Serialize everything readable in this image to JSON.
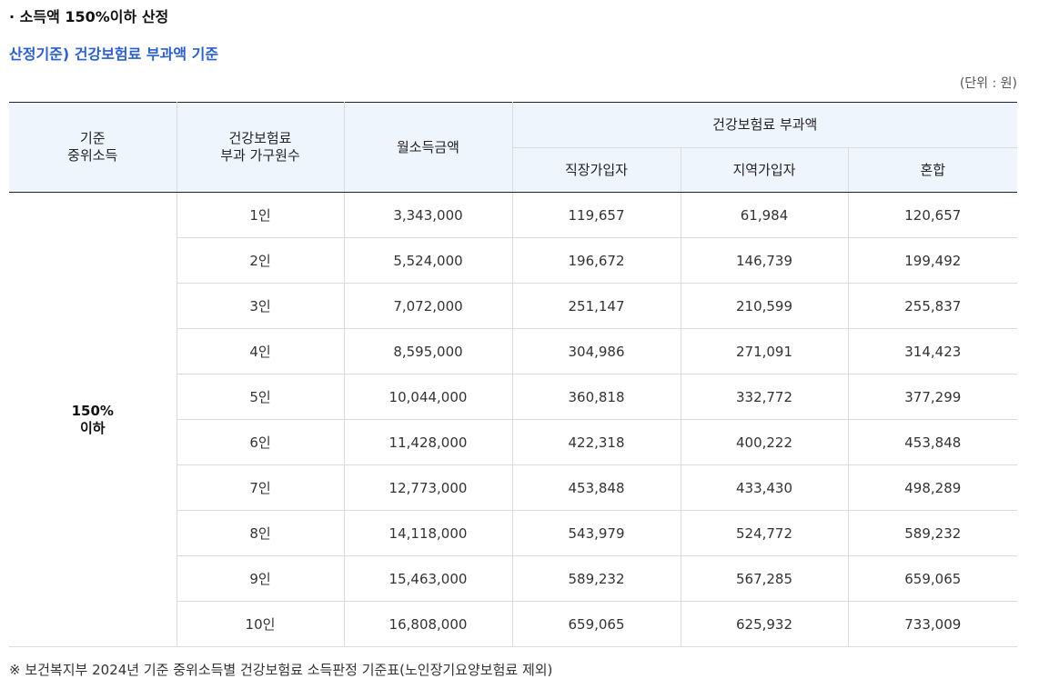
{
  "section_title": "· 소득액 150%이하 산정",
  "sub_title": "산정기준) 건강보험료 부과액 기준",
  "unit": "(단위 : 원)",
  "table": {
    "headers": {
      "col1_line1": "기준",
      "col1_line2": "중위소득",
      "col2_line1": "건강보험료",
      "col2_line2": "부과 가구원수",
      "col3": "월소득금액",
      "group": "건강보험료 부과액",
      "sub1": "직장가입자",
      "sub2": "지역가입자",
      "sub3": "혼합"
    },
    "group_label_line1": "150%",
    "group_label_line2": "이하",
    "rows": [
      {
        "household": "1인",
        "income": "3,343,000",
        "employee": "119,657",
        "regional": "61,984",
        "mixed": "120,657"
      },
      {
        "household": "2인",
        "income": "5,524,000",
        "employee": "196,672",
        "regional": "146,739",
        "mixed": "199,492"
      },
      {
        "household": "3인",
        "income": "7,072,000",
        "employee": "251,147",
        "regional": "210,599",
        "mixed": "255,837"
      },
      {
        "household": "4인",
        "income": "8,595,000",
        "employee": "304,986",
        "regional": "271,091",
        "mixed": "314,423"
      },
      {
        "household": "5인",
        "income": "10,044,000",
        "employee": "360,818",
        "regional": "332,772",
        "mixed": "377,299"
      },
      {
        "household": "6인",
        "income": "11,428,000",
        "employee": "422,318",
        "regional": "400,222",
        "mixed": "453,848"
      },
      {
        "household": "7인",
        "income": "12,773,000",
        "employee": "453,848",
        "regional": "433,430",
        "mixed": "498,289"
      },
      {
        "household": "8인",
        "income": "14,118,000",
        "employee": "543,979",
        "regional": "524,772",
        "mixed": "589,232"
      },
      {
        "household": "9인",
        "income": "15,463,000",
        "employee": "589,232",
        "regional": "567,285",
        "mixed": "659,065"
      },
      {
        "household": "10인",
        "income": "16,808,000",
        "employee": "659,065",
        "regional": "625,932",
        "mixed": "733,009"
      }
    ]
  },
  "footnote": "※ 보건복지부 2024년 기준 중위소득별 건강보험료 소득판정 기준표(노인장기요양보험료 제외)",
  "colors": {
    "accent": "#2a5fd3",
    "header_bg": "#eef5fd"
  }
}
